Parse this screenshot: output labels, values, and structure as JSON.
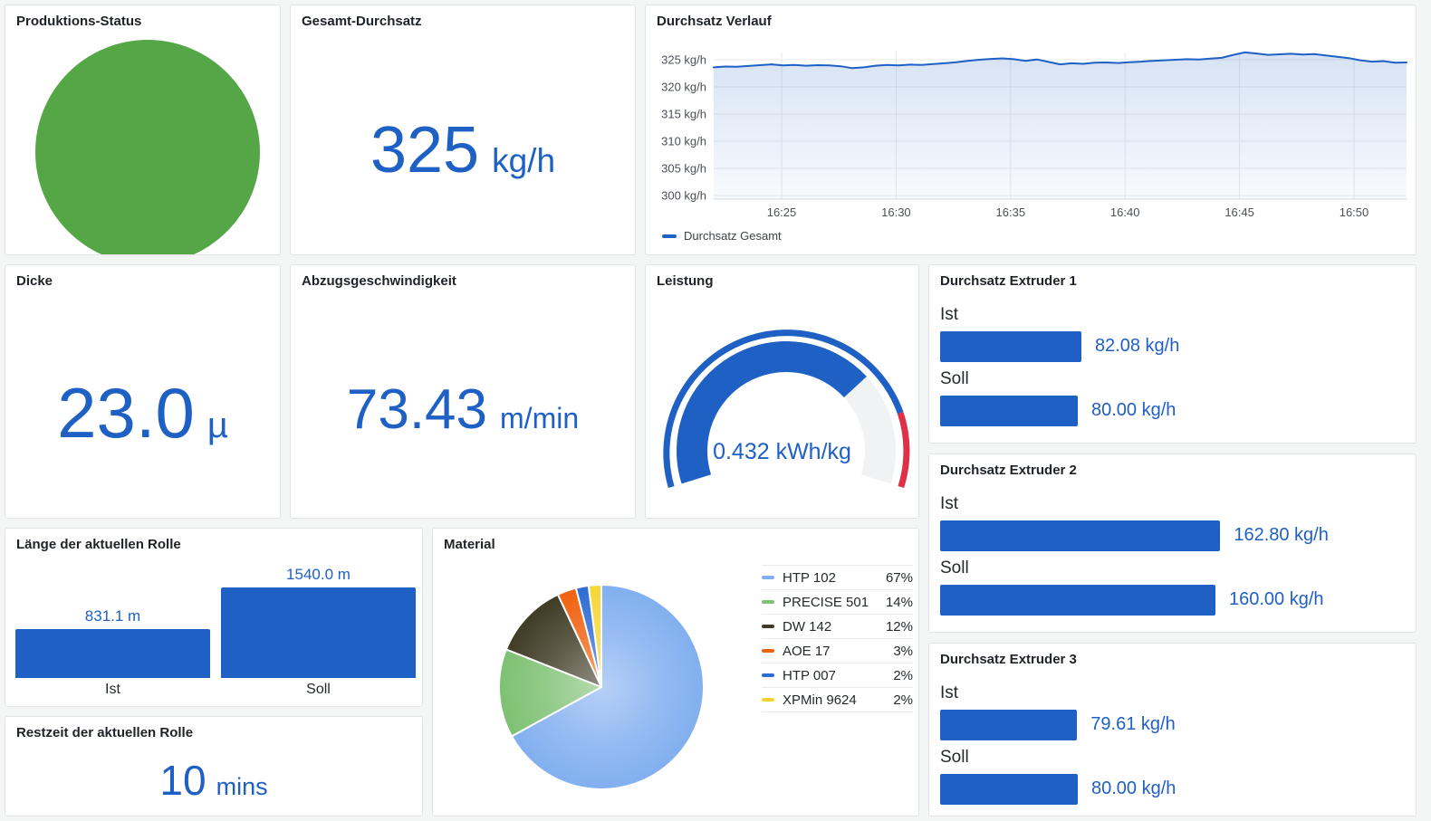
{
  "accent": "#1F60C4",
  "panels": {
    "status": {
      "title": "Produktions-Status",
      "status_color": "#55A647"
    },
    "gesamt": {
      "title": "Gesamt-Durchsatz",
      "value": "325",
      "unit": "kg/h"
    },
    "verlauf": {
      "title": "Durchsatz Verlauf",
      "legend_label": "Durchsatz Gesamt"
    },
    "dicke": {
      "title": "Dicke",
      "value": "23.0",
      "unit": "µ"
    },
    "abzug": {
      "title": "Abzugsgeschwindigkeit",
      "value": "73.43",
      "unit": "m/min"
    },
    "leistung": {
      "title": "Leistung",
      "value_display": "0.432 kWh/kg"
    },
    "extruder1": {
      "title": "Durchsatz Extruder 1"
    },
    "extruder2": {
      "title": "Durchsatz Extruder 2"
    },
    "extruder3": {
      "title": "Durchsatz Extruder 3"
    },
    "laenge": {
      "title": "Länge der aktuellen Rolle"
    },
    "restzeit": {
      "title": "Restzeit der aktuellen Rolle",
      "value": "10",
      "unit": "mins"
    },
    "material": {
      "title": "Material"
    }
  },
  "chart_data": [
    {
      "id": "durchsatz-verlauf",
      "type": "line",
      "title": "Durchsatz Verlauf",
      "legend": [
        "Durchsatz Gesamt"
      ],
      "legend_position": "bottom",
      "grid": true,
      "x_type": "time",
      "x_range": [
        "16:22",
        "16:52"
      ],
      "x_ticks": [
        "16:25",
        "16:30",
        "16:35",
        "16:40",
        "16:45",
        "16:50"
      ],
      "y_ticks": [
        300,
        305,
        310,
        315,
        320,
        325
      ],
      "y_tick_unit": "kg/h",
      "ylim": [
        299.3,
        326.3
      ],
      "series": [
        {
          "name": "Durchsatz Gesamt",
          "color": "#1F60C4",
          "fill": "gradient",
          "unit": "kg/h",
          "values": [
            323.6,
            323.75,
            323.7,
            323.85,
            324.0,
            324.15,
            323.95,
            324.05,
            323.9,
            324.0,
            323.95,
            323.8,
            323.45,
            323.6,
            323.9,
            324.05,
            323.95,
            324.1,
            324.05,
            324.2,
            324.35,
            324.55,
            324.8,
            325.0,
            325.15,
            325.25,
            325.1,
            324.8,
            325.05,
            324.6,
            324.15,
            324.35,
            324.25,
            324.45,
            324.5,
            324.4,
            324.55,
            324.65,
            324.8,
            324.9,
            325.0,
            325.1,
            325.05,
            325.2,
            325.35,
            325.9,
            326.35,
            326.15,
            325.9,
            326.0,
            326.1,
            325.95,
            326.05,
            325.8,
            325.55,
            325.3,
            324.9,
            324.65,
            324.75,
            324.45,
            324.5
          ]
        }
      ]
    },
    {
      "id": "leistung-gauge",
      "type": "gauge",
      "title": "Leistung",
      "value": 0.432,
      "display": "0.432 kWh/kg",
      "unit": "kWh/kg",
      "min": 0,
      "max": 0.6,
      "threshold": {
        "value": 0.5,
        "color": "#DE3049"
      },
      "bar_color": "#1F60C4",
      "track_color": "#F0F2F4"
    },
    {
      "id": "rollenlaenge",
      "type": "bar",
      "title": "Länge der aktuellen Rolle",
      "categories": [
        "Ist",
        "Soll"
      ],
      "values": [
        831.1,
        1540.0
      ],
      "value_labels": [
        "831.1 m",
        "1540.0 m"
      ],
      "unit": "m",
      "bar_color": "#1F60C4",
      "ylim": [
        0,
        1540
      ]
    },
    {
      "id": "material-pie",
      "type": "pie",
      "title": "Material",
      "start_angle": "top",
      "direction": "clockwise",
      "legend_position": "right",
      "slices": [
        {
          "label": "HTP 102",
          "pct": 67,
          "color": "#82AFF0"
        },
        {
          "label": "PRECISE 501",
          "pct": 14,
          "color": "#7EC173"
        },
        {
          "label": "DW 142",
          "pct": 12,
          "color": "#3F3B25"
        },
        {
          "label": "AOE 17",
          "pct": 3,
          "color": "#F0610F"
        },
        {
          "label": "HTP 007",
          "pct": 2,
          "color": "#2E6BD2"
        },
        {
          "label": "XPMin 9624",
          "pct": 2,
          "color": "#F6D636"
        }
      ]
    },
    {
      "id": "extruder-bargauges",
      "type": "bar-gauge",
      "scale_max": 270,
      "unit": "kg/h",
      "bar_color": "#1F60C4",
      "groups": [
        {
          "panel": "extruder1",
          "title": "Durchsatz Extruder 1",
          "rows": [
            {
              "label": "Ist",
              "value": 82.08,
              "display": "82.08 kg/h"
            },
            {
              "label": "Soll",
              "value": 80.0,
              "display": "80.00 kg/h"
            }
          ]
        },
        {
          "panel": "extruder2",
          "title": "Durchsatz Extruder 2",
          "rows": [
            {
              "label": "Ist",
              "value": 162.8,
              "display": "162.80 kg/h"
            },
            {
              "label": "Soll",
              "value": 160.0,
              "display": "160.00 kg/h"
            }
          ]
        },
        {
          "panel": "extruder3",
          "title": "Durchsatz Extruder 3",
          "rows": [
            {
              "label": "Ist",
              "value": 79.61,
              "display": "79.61 kg/h"
            },
            {
              "label": "Soll",
              "value": 80.0,
              "display": "80.00 kg/h"
            }
          ]
        }
      ]
    }
  ]
}
